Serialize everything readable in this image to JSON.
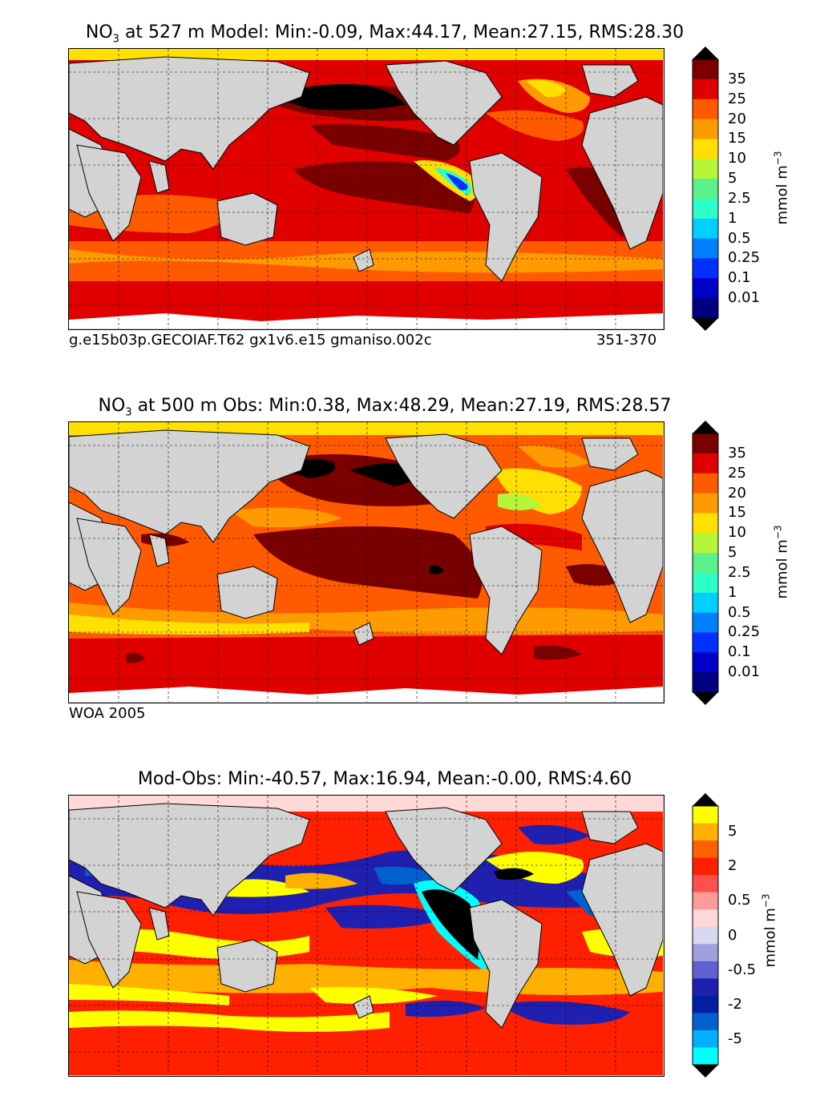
{
  "panels": [
    {
      "id": "model",
      "title_species": "NO",
      "title_sub": "3",
      "title_rest": " at 527 m Model: Min:-0.09, Max:44.17, Mean:27.15, RMS:28.30",
      "footer_left": "g.e15b03p.GECOIAF.T62 gx1v6.e15 gmaniso.002c",
      "footer_right": "351-370",
      "colorbar": {
        "ticks": [
          "35",
          "25",
          "20",
          "15",
          "10",
          "5",
          "2.5",
          "1",
          "0.5",
          "0.25",
          "0.1",
          "0.01"
        ],
        "colors": [
          "#7a0000",
          "#e00000",
          "#ff5a00",
          "#ff9a00",
          "#ffe000",
          "#b5f53a",
          "#5cf08a",
          "#2effc8",
          "#00cfff",
          "#0080ff",
          "#0030ff",
          "#0000c8",
          "#000080"
        ],
        "unit": "mmol m",
        "unit_sup": "−3"
      }
    },
    {
      "id": "obs",
      "title_species": "NO",
      "title_sub": "3",
      "title_rest": " at 500 m Obs: Min:0.38, Max:48.29, Mean:27.19, RMS:28.57",
      "footer_left": "WOA 2005",
      "footer_right": "",
      "colorbar": {
        "ticks": [
          "35",
          "25",
          "20",
          "15",
          "10",
          "5",
          "2.5",
          "1",
          "0.5",
          "0.25",
          "0.1",
          "0.01"
        ],
        "colors": [
          "#7a0000",
          "#e00000",
          "#ff5a00",
          "#ff9a00",
          "#ffe000",
          "#b5f53a",
          "#5cf08a",
          "#2effc8",
          "#00cfff",
          "#0080ff",
          "#0030ff",
          "#0000c8",
          "#000080"
        ],
        "unit": "mmol m",
        "unit_sup": "−3"
      }
    },
    {
      "id": "diff",
      "title_species": "",
      "title_sub": "",
      "title_rest": "Mod-Obs: Min:-40.57, Max:16.94, Mean:-0.00, RMS:4.60",
      "footer_left": "",
      "footer_right": "",
      "colorbar": {
        "ticks": [
          "5",
          "2",
          "0.5",
          "0",
          "-0.5",
          "-2",
          "-5"
        ],
        "colors": [
          "#ffff00",
          "#ffb000",
          "#ff6000",
          "#ff2000",
          "#ff5050",
          "#ff9a9a",
          "#ffd8d8",
          "#d8d8f0",
          "#a0a0e0",
          "#6060d0",
          "#2020b0",
          "#0020a0",
          "#0060d0",
          "#00b0ff",
          "#00ffff"
        ],
        "unit": "mmol m",
        "unit_sup": "−3"
      }
    }
  ],
  "colors": {
    "land": "#d3d3d3",
    "ice": "#ffffff",
    "grid": "#000000"
  }
}
